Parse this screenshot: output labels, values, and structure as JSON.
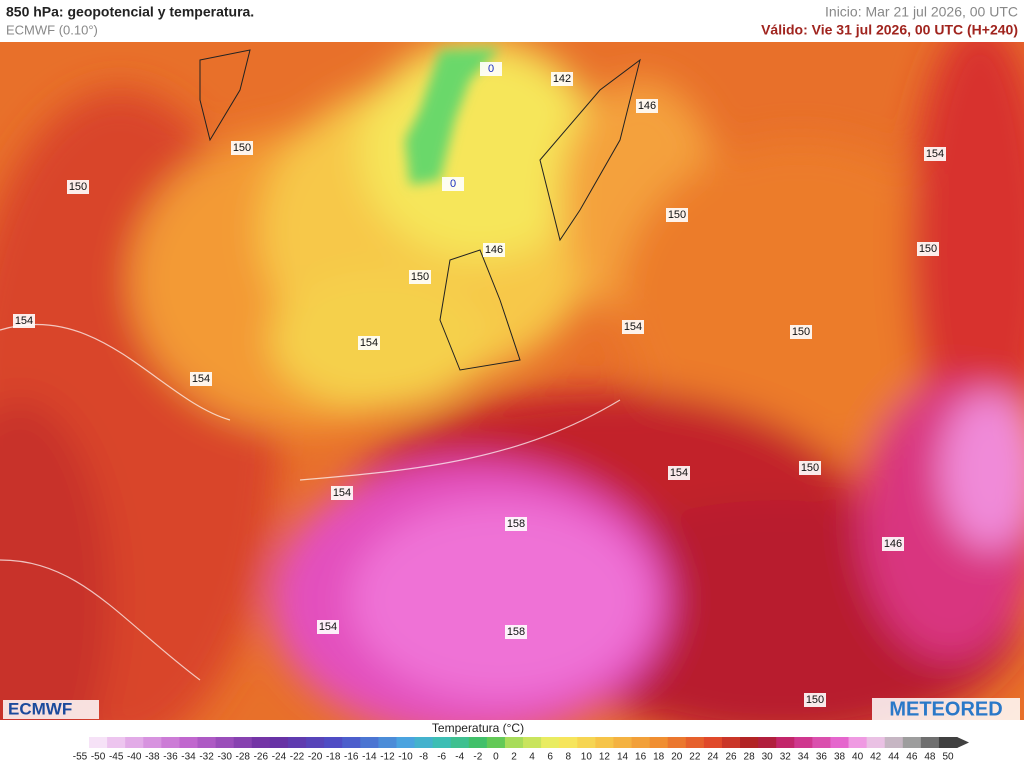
{
  "header": {
    "title": "850 hPa: geopotencial y temperatura.",
    "model": "ECMWF (0.10°)",
    "init": "Inicio: Mar 21 jul 2026, 00 UTC",
    "valid": "Válido: Vie 31 jul 2026, 00 UTC (H+240)"
  },
  "map": {
    "contour_labels": [
      "150",
      "150",
      "154",
      "154",
      "150",
      "154",
      "146",
      "142",
      "146",
      "150",
      "154",
      "150",
      "154",
      "150",
      "154",
      "158",
      "154",
      "150",
      "146",
      "154",
      "158",
      "150",
      "0",
      "0"
    ]
  },
  "logos": {
    "left": "ECMWF",
    "right": "METEORED"
  },
  "colorbar": {
    "title": "Temperatura (°C)",
    "labels": [
      -55,
      -50,
      -45,
      -40,
      -38,
      -36,
      -34,
      -32,
      -30,
      -28,
      -26,
      -24,
      -22,
      -20,
      -18,
      -16,
      -14,
      -12,
      -10,
      -8,
      -6,
      -4,
      -2,
      0,
      2,
      4,
      6,
      8,
      10,
      12,
      14,
      16,
      18,
      20,
      22,
      24,
      26,
      28,
      30,
      32,
      34,
      36,
      38,
      40,
      42,
      44,
      46,
      48,
      50
    ]
  }
}
